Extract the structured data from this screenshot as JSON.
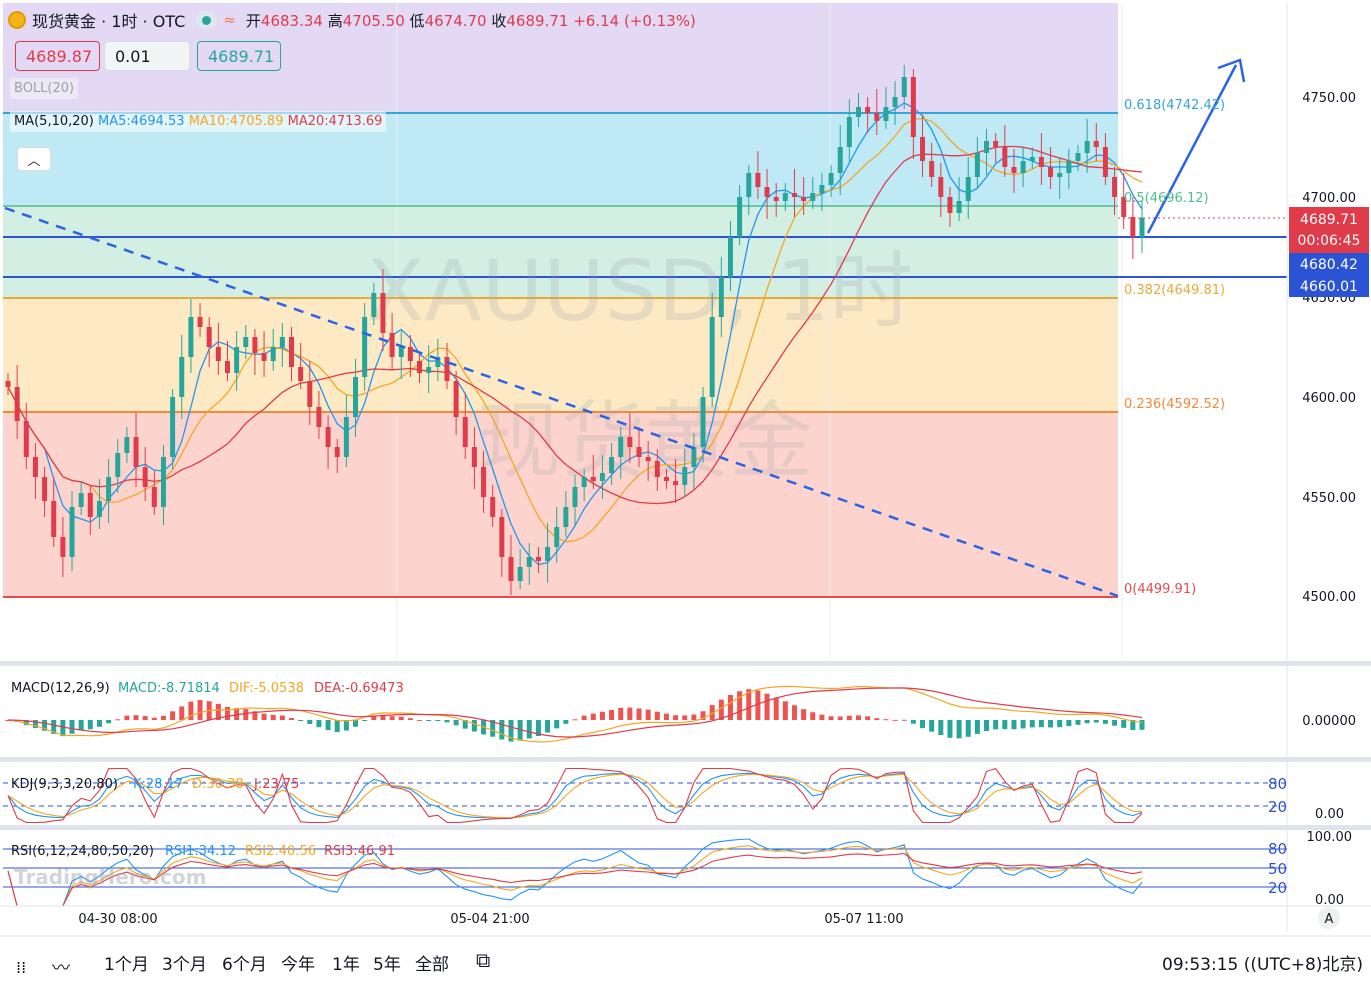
{
  "header": {
    "symbol": "现货黄金 · 1时 · OTC",
    "open_label": "开",
    "open": "4683.34",
    "high_label": "高",
    "high": "4705.50",
    "low_label": "低",
    "low": "4674.70",
    "close_label": "收",
    "close": "4689.71",
    "change": "+6.14 (+0.13%)"
  },
  "trade": {
    "sell": "4689.87",
    "qty": "0.01",
    "buy": "4689.71"
  },
  "indicators": {
    "boll": "BOLL(20)",
    "ma_label": "MA(5,10,20)",
    "ma5": "MA5:4694.53",
    "ma10": "MA10:4705.89",
    "ma20": "MA20:4713.69",
    "collapse_icon": "chevron-up-icon"
  },
  "watermark": {
    "line1": "XAUUSD, 1时",
    "line2": "现货黄金"
  },
  "price_axis": {
    "ticks": [
      "4750.00",
      "4700.00",
      "4650.00",
      "4600.00",
      "4550.00",
      "4500.00"
    ],
    "current_price": "4689.71",
    "countdown": "00:06:45",
    "level_a": "4680.42",
    "level_b": "4660.01"
  },
  "fib_labels": {
    "f618": "0.618(4742.42)",
    "f5": "0.5(4696.12)",
    "f382": "0.382(4649.81)",
    "f236": "0.236(4592.52)",
    "f0": "0(4499.91)"
  },
  "time_axis": [
    "04-30 08:00",
    "05-04 21:00",
    "05-07 11:00"
  ],
  "macd": {
    "label": "MACD(12,26,9)",
    "macd": "MACD:-8.71814",
    "dif": "DIF:-5.0538",
    "dea": "DEA:-0.69473",
    "axis": "0.00000"
  },
  "kdj": {
    "label": "KDJ(9,3,3,20,80)",
    "k": "K:28.17",
    "d": "D:30.38",
    "j": "J:23.75",
    "lvl80": "80",
    "lvl20": "20",
    "axis": "0.00"
  },
  "rsi": {
    "label": "RSI(6,12,24,80,50,20)",
    "rsi1": "RSI1:34.12",
    "rsi2": "RSI2:40.56",
    "rsi3": "RSI3:46.91",
    "lvl80": "80",
    "lvl50": "50",
    "lvl20": "20",
    "axis_top": "100.00",
    "axis_bottom": "0.00"
  },
  "brand": "TradingHero.com",
  "bottom": {
    "ranges": [
      "1个月",
      "3个月",
      "6个月",
      "今年",
      "1年",
      "5年",
      "全部"
    ],
    "clock": "09:53:15 ((UTC+8)北京)",
    "auto": "A"
  },
  "chart_data": {
    "type": "candlestick",
    "symbol": "XAUUSD",
    "interval": "1H",
    "ylim": [
      4470,
      4780
    ],
    "fib_levels": [
      {
        "ratio": 0.618,
        "price": 4742.42
      },
      {
        "ratio": 0.5,
        "price": 4696.12
      },
      {
        "ratio": 0.382,
        "price": 4649.81
      },
      {
        "ratio": 0.236,
        "price": 4592.52
      },
      {
        "ratio": 0,
        "price": 4499.91
      }
    ],
    "horizontal_lines": [
      4680.42,
      4660.01
    ],
    "close_series": [
      4605,
      4588,
      4570,
      4560,
      4548,
      4530,
      4520,
      4545,
      4552,
      4540,
      4548,
      4560,
      4572,
      4580,
      4565,
      4555,
      4545,
      4570,
      4600,
      4620,
      4640,
      4635,
      4625,
      4618,
      4612,
      4625,
      4630,
      4622,
      4618,
      4625,
      4630,
      4615,
      4608,
      4595,
      4585,
      4575,
      4570,
      4590,
      4610,
      4640,
      4652,
      4632,
      4620,
      4625,
      4618,
      4612,
      4615,
      4620,
      4608,
      4590,
      4575,
      4565,
      4550,
      4540,
      4520,
      4508,
      4515,
      4520,
      4518,
      4525,
      4535,
      4545,
      4555,
      4560,
      4558,
      4562,
      4570,
      4580,
      4575,
      4570,
      4568,
      4560,
      4558,
      4556,
      4565,
      4575,
      4600,
      4640,
      4660,
      4680,
      4700,
      4712,
      4705,
      4700,
      4698,
      4702,
      4700,
      4698,
      4702,
      4706,
      4712,
      4725,
      4740,
      4745,
      4742,
      4738,
      4745,
      4750,
      4760,
      4730,
      4718,
      4710,
      4700,
      4692,
      4698,
      4710,
      4722,
      4728,
      4725,
      4715,
      4712,
      4718,
      4720,
      4715,
      4710,
      4712,
      4718,
      4722,
      4728,
      4725,
      4710,
      4700,
      4690,
      4680,
      4689.71
    ],
    "ma5": 4694.53,
    "ma10": 4705.89,
    "ma20": 4713.69,
    "macd": {
      "macd": -8.71814,
      "dif": -5.0538,
      "dea": -0.69473
    },
    "kdj": {
      "k": 28.17,
      "d": 30.38,
      "j": 23.75
    },
    "rsi": {
      "rsi1": 34.12,
      "rsi2": 40.56,
      "rsi3": 46.91
    }
  }
}
